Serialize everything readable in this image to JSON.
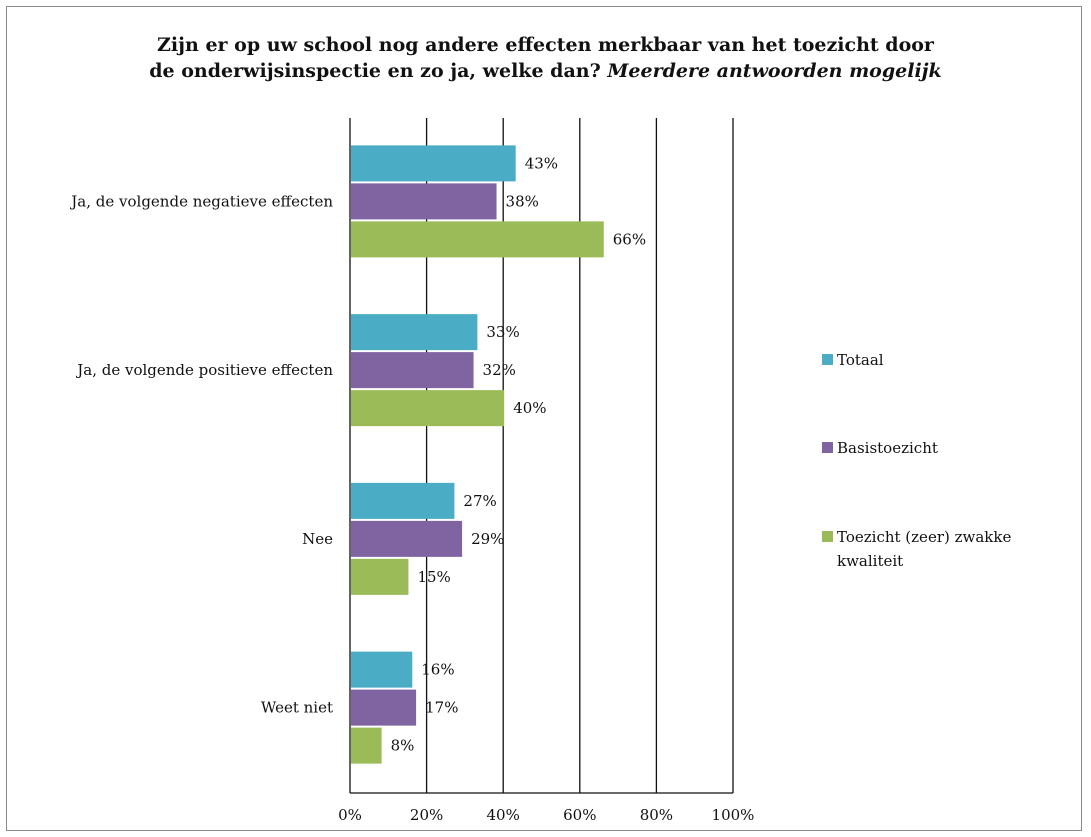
{
  "chart_data": {
    "type": "bar",
    "orientation": "horizontal",
    "title_line1": "Zijn er op uw school nog andere effecten merkbaar van het toezicht door",
    "title_line2_main": "de onderwijsinspectie  en zo ja, welke dan?",
    "title_line2_italic": "Meerdere antwoorden  mogelijk",
    "categories": [
      "Ja, de volgende negatieve effecten",
      "Ja, de volgende positieve effecten",
      "Nee",
      "Weet niet"
    ],
    "series": [
      {
        "name": "Totaal",
        "color": "#4bacc6",
        "values": [
          43,
          33,
          27,
          16
        ]
      },
      {
        "name": "Basistoezicht",
        "color": "#8064a2",
        "values": [
          38,
          32,
          29,
          17
        ]
      },
      {
        "name": "Toezicht (zeer) zwakke kwaliteit",
        "name_lines": [
          "Toezicht (zeer) zwakke",
          "kwaliteit"
        ],
        "color": "#9bbb59",
        "values": [
          66,
          40,
          15,
          8
        ]
      }
    ],
    "value_suffix": "%",
    "xlim": [
      0,
      100
    ],
    "xticks": [
      "0%",
      "20%",
      "40%",
      "60%",
      "80%",
      "100%"
    ],
    "grid": true,
    "legend_position": "right"
  }
}
